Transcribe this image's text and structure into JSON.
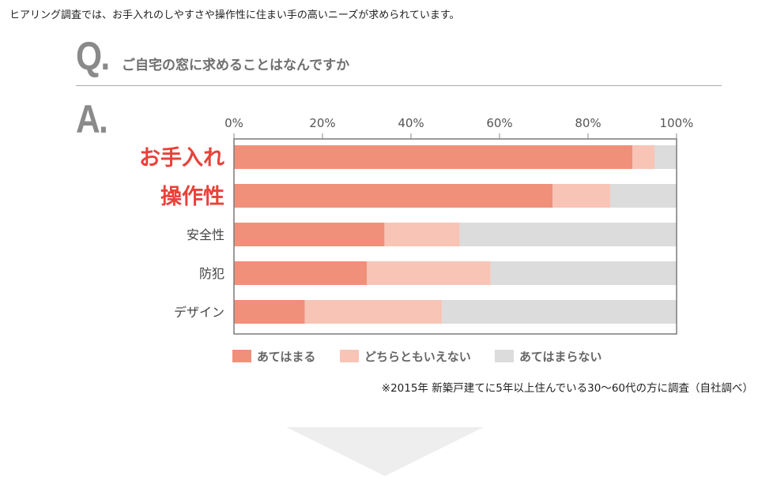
{
  "intro_text": "ヒアリング調査では、お手入れのしやすさや操作性に住まい手の高いニーズが求められています。",
  "question": {
    "letter": "Q.",
    "text": "ご自宅の窓に求めることはなんですか"
  },
  "answer": {
    "letter": "A."
  },
  "footnote": "※2015年 新築戸建てに5年以上住んでいる30〜60代の方に調査（自社調べ）",
  "colors": {
    "agree": "#f0907a",
    "neutral": "#f8c4b6",
    "disagree": "#dcdcdc",
    "highlight_label": "#e8423a",
    "normal_label": "#444444"
  },
  "chart_data": {
    "type": "bar",
    "orientation": "horizontal",
    "stacked": true,
    "title": "",
    "xlabel": "",
    "ylabel": "",
    "xlim": [
      0,
      100
    ],
    "ticks": [
      "0%",
      "20%",
      "40%",
      "60%",
      "80%",
      "100%"
    ],
    "grid": false,
    "legend_position": "bottom",
    "categories": [
      "お手入れ",
      "操作性",
      "安全性",
      "防犯",
      "デザイン"
    ],
    "highlighted": [
      true,
      true,
      false,
      false,
      false
    ],
    "series": [
      {
        "name": "あてはまる",
        "color": "#f0907a",
        "values": [
          90,
          72,
          34,
          30,
          16
        ]
      },
      {
        "name": "どちらともいえない",
        "color": "#f8c4b6",
        "values": [
          5,
          13,
          17,
          28,
          31
        ]
      },
      {
        "name": "あてはまらない",
        "color": "#dcdcdc",
        "values": [
          5,
          15,
          49,
          42,
          53
        ]
      }
    ]
  }
}
